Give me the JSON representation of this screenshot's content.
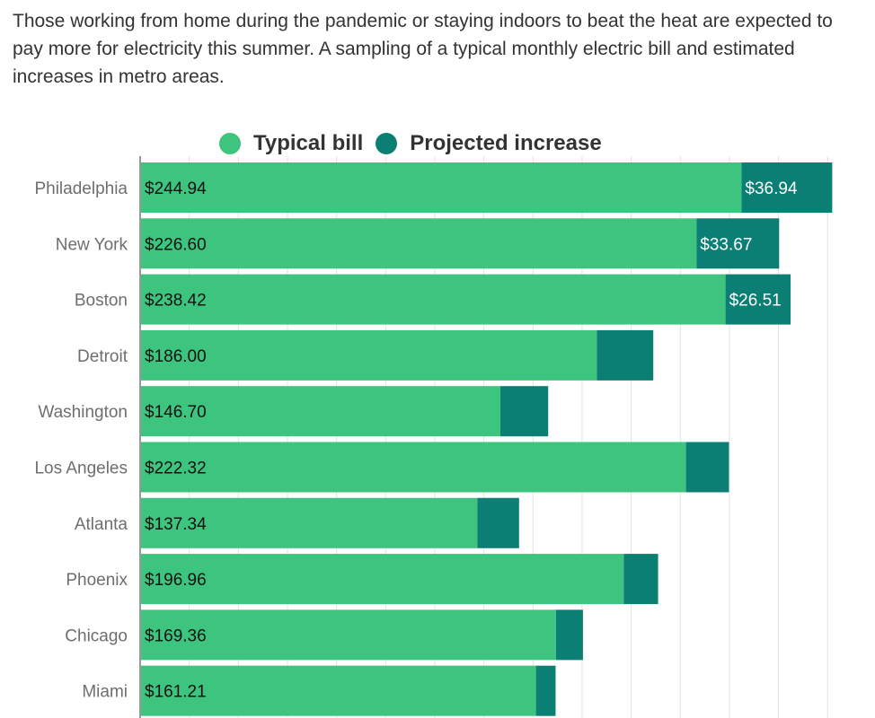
{
  "description": "Those working from home during the pandemic or staying indoors to beat the heat are expected to pay more for electricity this summer. A sampling of a typical monthly electric bill and estimated increases in metro areas.",
  "colors": {
    "typical": "#3dc47e",
    "increase": "#0b7f74",
    "grid": "#e2e2e2",
    "axis": "#999999"
  },
  "chart_data": {
    "type": "bar",
    "orientation": "horizontal",
    "stacked": true,
    "legend": "top",
    "grid": true,
    "xlim": [
      0,
      290
    ],
    "categories": [
      "Philadelphia",
      "New York",
      "Boston",
      "Detroit",
      "Washington",
      "Los Angeles",
      "Atlanta",
      "Phoenix",
      "Chicago",
      "Miami"
    ],
    "series": [
      {
        "name": "Typical bill",
        "values": [
          244.94,
          226.6,
          238.42,
          186.0,
          146.7,
          222.32,
          137.34,
          196.96,
          169.36,
          161.21
        ],
        "labels": [
          "$244.94",
          "$226.60",
          "$238.42",
          "$186.00",
          "$146.70",
          "$222.32",
          "$137.34",
          "$196.96",
          "$169.36",
          "$161.21"
        ]
      },
      {
        "name": "Projected increase",
        "values": [
          36.94,
          33.67,
          26.51,
          23.0,
          19.5,
          17.5,
          17.0,
          14.0,
          11.0,
          8.0
        ],
        "labels": [
          "$36.94",
          "$33.67",
          "$26.51",
          "",
          "",
          "",
          "",
          "",
          "",
          ""
        ]
      }
    ]
  }
}
